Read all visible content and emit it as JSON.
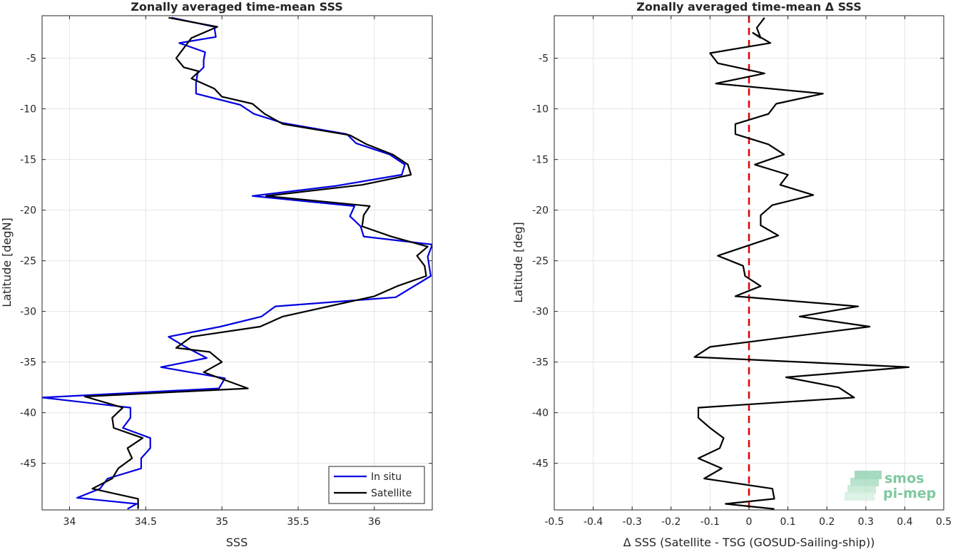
{
  "colors": {
    "in_situ": "#0000e0",
    "satellite": "#000000",
    "zero_line": "#e00000",
    "grid": "#e6e6e6",
    "axis": "#262626",
    "logo": "#7fc8a0"
  },
  "logo": {
    "line1": "smos",
    "line2": "pi-mep"
  },
  "chart_data": [
    {
      "type": "line",
      "title": "Zonally averaged time-mean SSS",
      "xlabel": "SSS",
      "ylabel": "Latitude [degN]",
      "xlim": [
        33.82,
        36.38
      ],
      "ylim": [
        -49.6,
        -0.8
      ],
      "xticks": [
        34,
        34.5,
        35,
        35.5,
        36
      ],
      "xtick_labels": [
        "34",
        "34.5",
        "35",
        "35.5",
        "36"
      ],
      "yticks": [
        -5,
        -10,
        -15,
        -20,
        -25,
        -30,
        -35,
        -40,
        -45
      ],
      "ytick_labels": [
        "-5",
        "-10",
        "-15",
        "-20",
        "-25",
        "-30",
        "-35",
        "-40",
        "-45"
      ],
      "grid": true,
      "legend": {
        "position": "bottom-right",
        "entries": [
          "In situ",
          "Satellite"
        ]
      },
      "series": [
        {
          "name": "In situ",
          "color": "#0000e0",
          "points": [
            [
              34.67,
              -1.0
            ],
            [
              34.95,
              -1.9
            ],
            [
              34.96,
              -2.9
            ],
            [
              34.72,
              -3.5
            ],
            [
              34.89,
              -4.4
            ],
            [
              34.88,
              -5.2
            ],
            [
              34.88,
              -5.9
            ],
            [
              34.84,
              -6.5
            ],
            [
              34.83,
              -7.5
            ],
            [
              34.83,
              -8.5
            ],
            [
              35.12,
              -9.6
            ],
            [
              35.21,
              -10.5
            ],
            [
              35.4,
              -11.4
            ],
            [
              35.82,
              -12.5
            ],
            [
              35.88,
              -13.4
            ],
            [
              36.1,
              -14.5
            ],
            [
              36.2,
              -15.5
            ],
            [
              36.18,
              -16.5
            ],
            [
              35.75,
              -17.6
            ],
            [
              35.2,
              -18.6
            ],
            [
              35.87,
              -19.6
            ],
            [
              35.84,
              -20.6
            ],
            [
              35.91,
              -21.6
            ],
            [
              35.93,
              -22.6
            ],
            [
              36.38,
              -23.4
            ],
            [
              36.35,
              -24.6
            ],
            [
              36.37,
              -26.5
            ],
            [
              36.14,
              -28.6
            ],
            [
              35.35,
              -29.5
            ],
            [
              35.26,
              -30.5
            ],
            [
              34.99,
              -31.5
            ],
            [
              34.65,
              -32.5
            ],
            [
              34.76,
              -33.5
            ],
            [
              34.9,
              -34.6
            ],
            [
              34.6,
              -35.5
            ],
            [
              35.02,
              -36.6
            ],
            [
              34.98,
              -37.6
            ],
            [
              33.82,
              -38.5
            ],
            [
              34.4,
              -39.5
            ],
            [
              34.4,
              -40.5
            ],
            [
              34.35,
              -41.5
            ],
            [
              34.53,
              -42.5
            ],
            [
              34.53,
              -43.5
            ],
            [
              34.47,
              -44.5
            ],
            [
              34.47,
              -45.5
            ],
            [
              34.25,
              -46.5
            ],
            [
              34.2,
              -47.5
            ],
            [
              34.05,
              -48.4
            ],
            [
              34.44,
              -49.0
            ],
            [
              34.38,
              -49.5
            ]
          ]
        },
        {
          "name": "Satellite",
          "color": "#000000",
          "points": [
            [
              34.65,
              -1.0
            ],
            [
              34.97,
              -1.9
            ],
            [
              34.8,
              -3.0
            ],
            [
              34.75,
              -4.0
            ],
            [
              34.7,
              -5.0
            ],
            [
              34.75,
              -5.9
            ],
            [
              34.85,
              -6.3
            ],
            [
              34.8,
              -7.0
            ],
            [
              34.95,
              -8.0
            ],
            [
              35.0,
              -8.8
            ],
            [
              35.2,
              -9.5
            ],
            [
              35.28,
              -10.5
            ],
            [
              35.4,
              -11.5
            ],
            [
              35.84,
              -12.6
            ],
            [
              35.95,
              -13.5
            ],
            [
              36.12,
              -14.5
            ],
            [
              36.22,
              -15.5
            ],
            [
              36.24,
              -16.5
            ],
            [
              35.92,
              -17.5
            ],
            [
              35.29,
              -18.6
            ],
            [
              35.97,
              -19.6
            ],
            [
              35.93,
              -20.5
            ],
            [
              35.92,
              -21.6
            ],
            [
              36.11,
              -22.6
            ],
            [
              36.35,
              -23.6
            ],
            [
              36.28,
              -24.5
            ],
            [
              36.33,
              -25.5
            ],
            [
              36.34,
              -26.5
            ],
            [
              36.15,
              -27.5
            ],
            [
              36.0,
              -28.5
            ],
            [
              35.4,
              -30.5
            ],
            [
              35.25,
              -31.5
            ],
            [
              34.8,
              -32.5
            ],
            [
              34.7,
              -33.6
            ],
            [
              34.92,
              -34.0
            ],
            [
              35.0,
              -35.0
            ],
            [
              34.88,
              -36.0
            ],
            [
              35.17,
              -37.6
            ],
            [
              34.1,
              -38.4
            ],
            [
              34.35,
              -39.5
            ],
            [
              34.28,
              -40.5
            ],
            [
              34.29,
              -41.5
            ],
            [
              34.48,
              -42.5
            ],
            [
              34.38,
              -43.5
            ],
            [
              34.41,
              -44.5
            ],
            [
              34.32,
              -45.5
            ],
            [
              34.28,
              -46.5
            ],
            [
              34.15,
              -47.5
            ],
            [
              34.45,
              -48.5
            ],
            [
              34.45,
              -49.5
            ]
          ]
        }
      ]
    },
    {
      "type": "line",
      "title": "Zonally averaged time-mean Δ SSS",
      "xlabel": "Δ SSS (Satellite - TSG (GOSUD-Sailing-ship))",
      "ylabel": "Latitude [deg]",
      "xlim": [
        -0.5,
        0.5
      ],
      "ylim": [
        -49.6,
        -0.8
      ],
      "xticks": [
        -0.5,
        -0.4,
        -0.3,
        -0.2,
        -0.1,
        0,
        0.1,
        0.2,
        0.3,
        0.4,
        0.5
      ],
      "xtick_labels": [
        "-0.5",
        "-0.4",
        "-0.3",
        "-0.2",
        "-0.1",
        "0",
        "0.1",
        "0.2",
        "0.3",
        "0.4",
        "0.5"
      ],
      "yticks": [
        -5,
        -10,
        -15,
        -20,
        -25,
        -30,
        -35,
        -40,
        -45
      ],
      "ytick_labels": [
        "-5",
        "-10",
        "-15",
        "-20",
        "-25",
        "-30",
        "-35",
        "-40",
        "-45"
      ],
      "grid": true,
      "reference_line": {
        "x": 0,
        "style": "dashed",
        "color": "#e00000"
      },
      "series": [
        {
          "color": "#000000",
          "points": [
            [
              0.04,
              -1.0
            ],
            [
              0.02,
              -2.0
            ],
            [
              0.03,
              -3.0
            ],
            [
              0.01,
              -2.5
            ],
            [
              0.055,
              -3.5
            ],
            [
              -0.1,
              -4.5
            ],
            [
              -0.08,
              -5.5
            ],
            [
              0.04,
              -6.5
            ],
            [
              -0.085,
              -7.5
            ],
            [
              0.19,
              -8.5
            ],
            [
              0.07,
              -9.5
            ],
            [
              0.05,
              -10.5
            ],
            [
              -0.035,
              -11.5
            ],
            [
              -0.035,
              -12.5
            ],
            [
              0.05,
              -13.5
            ],
            [
              0.09,
              -14.5
            ],
            [
              0.015,
              -15.5
            ],
            [
              0.1,
              -16.5
            ],
            [
              0.08,
              -17.5
            ],
            [
              0.165,
              -18.5
            ],
            [
              0.06,
              -19.5
            ],
            [
              0.03,
              -20.5
            ],
            [
              0.03,
              -21.5
            ],
            [
              0.075,
              -22.5
            ],
            [
              -0.08,
              -24.5
            ],
            [
              -0.015,
              -25.5
            ],
            [
              -0.01,
              -26.5
            ],
            [
              0.03,
              -27.5
            ],
            [
              -0.035,
              -28.5
            ],
            [
              0.28,
              -29.5
            ],
            [
              0.13,
              -30.5
            ],
            [
              0.31,
              -31.5
            ],
            [
              -0.1,
              -33.5
            ],
            [
              -0.14,
              -34.5
            ],
            [
              0.41,
              -35.5
            ],
            [
              0.095,
              -36.5
            ],
            [
              0.23,
              -37.5
            ],
            [
              0.27,
              -38.5
            ],
            [
              -0.13,
              -39.5
            ],
            [
              -0.13,
              -40.5
            ],
            [
              -0.1,
              -41.5
            ],
            [
              -0.065,
              -42.5
            ],
            [
              -0.075,
              -43.5
            ],
            [
              -0.13,
              -44.5
            ],
            [
              -0.07,
              -45.5
            ],
            [
              -0.115,
              -46.5
            ],
            [
              0.06,
              -47.5
            ],
            [
              0.065,
              -48.5
            ],
            [
              -0.06,
              -49.0
            ],
            [
              0.065,
              -49.5
            ]
          ]
        }
      ]
    }
  ]
}
